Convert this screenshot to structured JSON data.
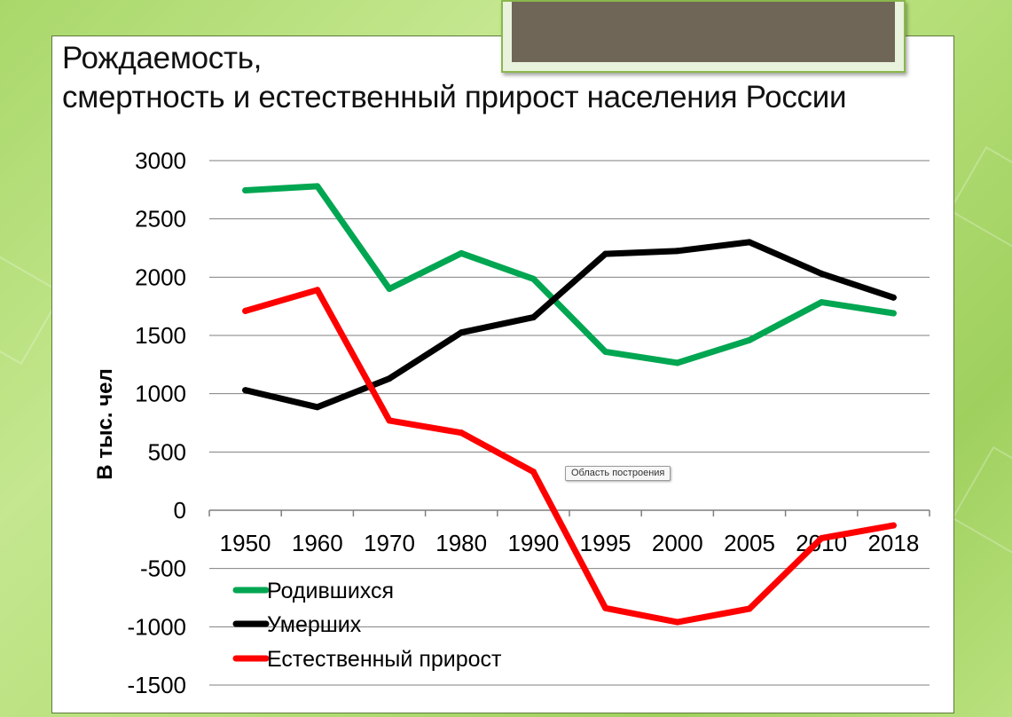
{
  "title_lines": [
    "Рождаемость,",
    "смертность и естественный прирост населения России"
  ],
  "tooltip": "Область построения",
  "chart_data": {
    "type": "line",
    "title": "Рождаемость, смертность и естественный прирост населения России",
    "ylabel": "В тыс. чел",
    "xlabel": "",
    "categories": [
      "1950",
      "1960",
      "1970",
      "1980",
      "1990",
      "1995",
      "2000",
      "2005",
      "2010",
      "2018"
    ],
    "ylim": [
      -1500,
      3000
    ],
    "yticks": [
      3000,
      2500,
      2000,
      1500,
      1000,
      500,
      0,
      -500,
      -1000,
      -1500
    ],
    "grid": true,
    "legend_position": "bottom-left",
    "series": [
      {
        "name": "Родившихся",
        "color": "#00a651",
        "values": [
          2745,
          2780,
          1900,
          2205,
          1985,
          1360,
          1265,
          1460,
          1785,
          1690
        ]
      },
      {
        "name": "Умерших",
        "color": "#000000",
        "values": [
          1030,
          885,
          1130,
          1525,
          1655,
          2200,
          2225,
          2300,
          2030,
          1825
        ]
      },
      {
        "name": "Естественный прирост",
        "color": "#ff0000",
        "values": [
          1710,
          1890,
          770,
          665,
          330,
          -840,
          -960,
          -845,
          -240,
          -130
        ]
      }
    ]
  }
}
